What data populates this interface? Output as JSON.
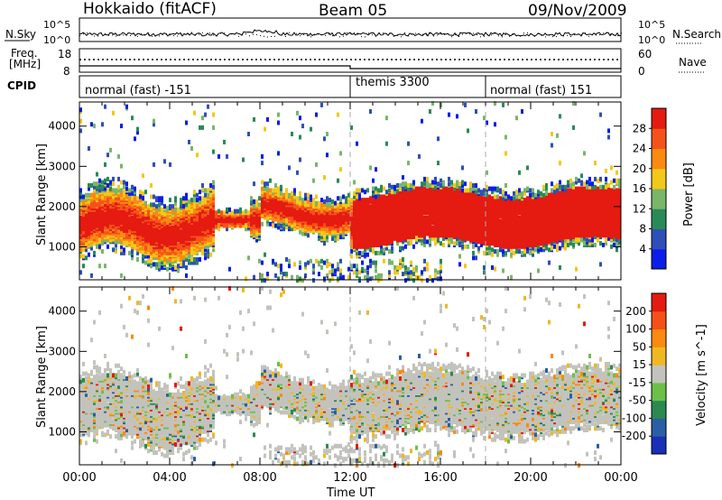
{
  "header": {
    "station": "Hokkaido (fitACF)",
    "beam": "Beam 05",
    "date": "09/Nov/2009"
  },
  "top_panel": {
    "left_label": "N.Sky",
    "right_label": "N.Search",
    "tick_high": "10^5",
    "tick_low": "10^0"
  },
  "freq_panel": {
    "left_label_line1": "Freq.",
    "left_label_line2": "[MHz]",
    "right_label": "Nave",
    "left_ticks": [
      "18",
      "8"
    ],
    "right_ticks": [
      "60",
      "0"
    ]
  },
  "cpid_panel": {
    "label": "CPID",
    "segments": [
      {
        "text": "normal (fast) -151",
        "start_hour": 0
      },
      {
        "text": "themis 3300",
        "start_hour": 12
      },
      {
        "text": "normal (fast) 151",
        "start_hour": 18
      }
    ]
  },
  "chart_data": [
    {
      "type": "heatmap",
      "title": "",
      "xlabel": "Time UT",
      "ylabel": "Slant Range [km]",
      "x_range_hours": [
        0,
        24
      ],
      "xticks": [
        "00:00",
        "04:00",
        "08:00",
        "12:00",
        "16:00",
        "20:00",
        "00:00"
      ],
      "ylim": [
        180,
        4600
      ],
      "yticks": [
        1000,
        2000,
        3000,
        4000
      ],
      "colorbar": {
        "label": "Power [dB]",
        "ticks": [
          4,
          8,
          12,
          16,
          20,
          24,
          28
        ],
        "colors": [
          "#0b1ee8",
          "#2f4fb8",
          "#2a8a56",
          "#79b66a",
          "#f2c81a",
          "#fb8a10",
          "#f5521a",
          "#e51a10"
        ]
      },
      "dominant_bands_km": [
        {
          "start_hour": 0,
          "end_hour": 6,
          "range": [
            900,
            2300
          ],
          "level_db": 22
        },
        {
          "start_hour": 8,
          "end_hour": 12,
          "range": [
            1600,
            2300
          ],
          "level_db": 26
        },
        {
          "start_hour": 12,
          "end_hour": 24,
          "range": [
            900,
            2200
          ],
          "level_db": 30
        }
      ]
    },
    {
      "type": "heatmap",
      "title": "",
      "xlabel": "Time UT",
      "ylabel": "Slant Range [km]",
      "x_range_hours": [
        0,
        24
      ],
      "xticks": [
        "00:00",
        "04:00",
        "08:00",
        "12:00",
        "16:00",
        "20:00",
        "00:00"
      ],
      "ylim": [
        180,
        4600
      ],
      "yticks": [
        1000,
        2000,
        3000,
        4000
      ],
      "colorbar": {
        "label": "Velocity [m s^-1]",
        "ticks": [
          "200",
          "100",
          "50",
          "15",
          "-15",
          "-50",
          "-100",
          "-200"
        ],
        "colors": [
          "#1a2fb8",
          "#2a5ea6",
          "#2a8a50",
          "#6cc048",
          "#c3c3bd",
          "#f0b820",
          "#fb8a10",
          "#f55018",
          "#e51a10"
        ]
      }
    }
  ]
}
